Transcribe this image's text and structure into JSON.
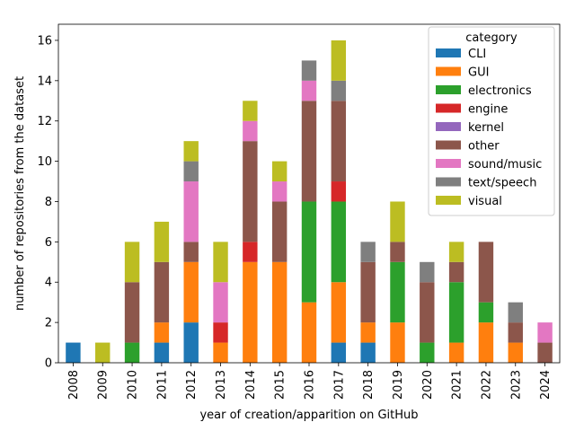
{
  "chart_data": {
    "type": "bar",
    "stacked": true,
    "xlabel": "year of creation/apparition on GitHub",
    "ylabel": "number of repositories from the dataset",
    "ylim": [
      0,
      16.8
    ],
    "yticks": [
      0,
      2,
      4,
      6,
      8,
      10,
      12,
      14,
      16
    ],
    "grid": false,
    "legend": {
      "title": "category",
      "placement": "top-right"
    },
    "categories": [
      "2008",
      "2009",
      "2010",
      "2011",
      "2012",
      "2013",
      "2014",
      "2015",
      "2016",
      "2017",
      "2018",
      "2019",
      "2020",
      "2021",
      "2022",
      "2023",
      "2024"
    ],
    "series": [
      {
        "name": "CLI",
        "color": "#1f77b4",
        "values": [
          1,
          0,
          0,
          1,
          2,
          0,
          0,
          0,
          0,
          1,
          1,
          0,
          0,
          0,
          0,
          0,
          0
        ]
      },
      {
        "name": "GUI",
        "color": "#ff7f0e",
        "values": [
          0,
          0,
          0,
          1,
          3,
          1,
          5,
          5,
          3,
          3,
          1,
          2,
          0,
          1,
          2,
          1,
          0
        ]
      },
      {
        "name": "electronics",
        "color": "#2ca02c",
        "values": [
          0,
          0,
          1,
          0,
          0,
          0,
          0,
          0,
          5,
          4,
          0,
          3,
          1,
          3,
          1,
          0,
          0
        ]
      },
      {
        "name": "engine",
        "color": "#d62728",
        "values": [
          0,
          0,
          0,
          0,
          0,
          1,
          1,
          0,
          0,
          1,
          0,
          0,
          0,
          0,
          0,
          0,
          0
        ]
      },
      {
        "name": "kernel",
        "color": "#9467bd",
        "values": [
          0,
          0,
          0,
          0,
          0,
          0,
          0,
          0,
          0,
          0,
          0,
          0,
          0,
          0,
          0,
          0,
          0
        ]
      },
      {
        "name": "other",
        "color": "#8c564b",
        "values": [
          0,
          0,
          3,
          3,
          1,
          0,
          5,
          3,
          5,
          4,
          3,
          1,
          3,
          1,
          3,
          1,
          1
        ]
      },
      {
        "name": "sound/music",
        "color": "#e377c2",
        "values": [
          0,
          0,
          0,
          0,
          3,
          2,
          1,
          1,
          1,
          0,
          0,
          0,
          0,
          0,
          0,
          0,
          1
        ]
      },
      {
        "name": "text/speech",
        "color": "#7f7f7f",
        "values": [
          0,
          0,
          0,
          0,
          1,
          0,
          0,
          0,
          1,
          1,
          1,
          0,
          1,
          0,
          0,
          1,
          0
        ]
      },
      {
        "name": "visual",
        "color": "#bcbd22",
        "values": [
          0,
          1,
          2,
          2,
          1,
          2,
          1,
          1,
          0,
          2,
          0,
          2,
          0,
          1,
          0,
          0,
          0
        ]
      }
    ]
  }
}
